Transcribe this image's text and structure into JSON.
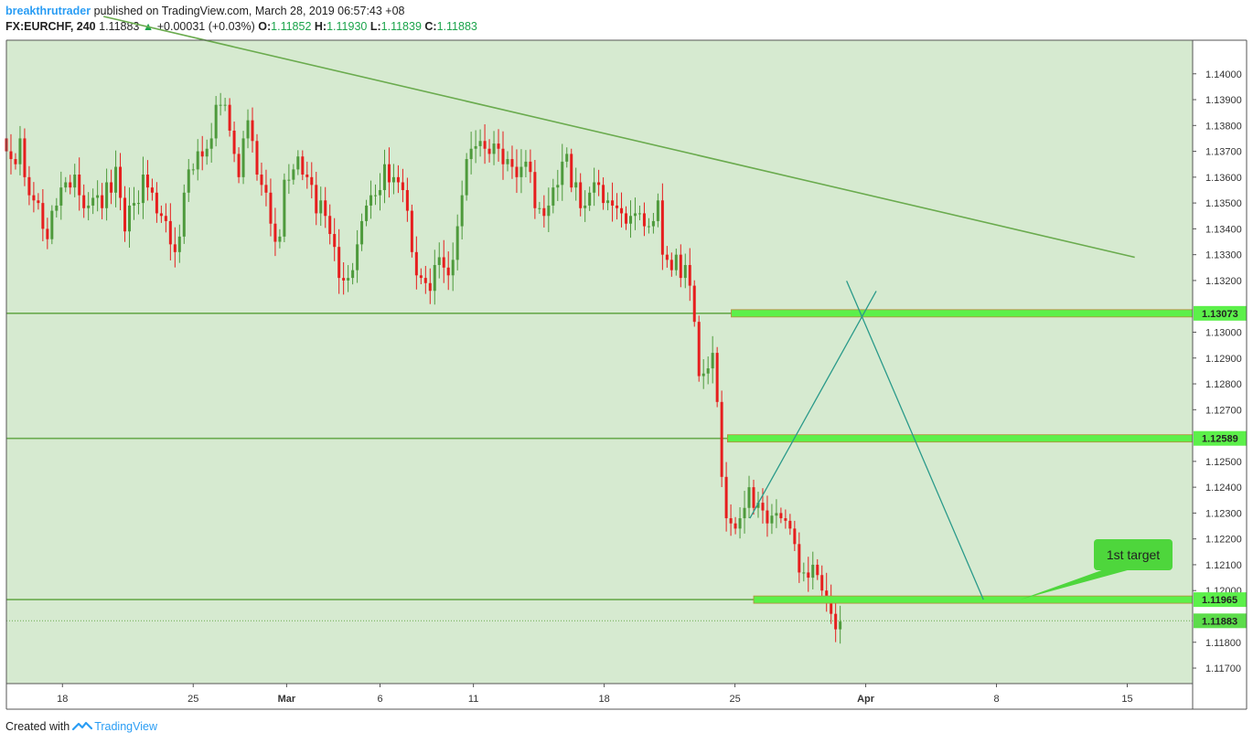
{
  "header": {
    "author": "breakthrutrader",
    "published_text": "published on TradingView.com, March 28, 2019 06:57:43 +08",
    "symbol": "FX:EURCHF, 240",
    "last": "1.11883",
    "change_arrow": "▲",
    "change": "+0.00031 (+0.03%)",
    "o_label": "O:",
    "o_value": "1.11852",
    "h_label": "H:",
    "h_value": "1.11930",
    "l_label": "L:",
    "l_value": "1.11839",
    "c_label": "C:",
    "c_value": "1.11883"
  },
  "footer": {
    "created_with": "Created with",
    "brand": "TradingView",
    "logo_icon": "tradingview-logo-icon"
  },
  "colors": {
    "plot_bg": "#d6ead0",
    "up": "#4e9a3c",
    "down": "#e61e1e",
    "line": "#6aab4e",
    "zone": "#5cf04a",
    "arc": "#2a9a8a",
    "label_bg": "#4ed63c",
    "last_bg": "#5cdc4a"
  },
  "chart_data": {
    "type": "candlestick",
    "symbol": "FX:EURCHF",
    "interval": "240",
    "ylim": [
      1.1164,
      1.1413
    ],
    "y_ticks": [
      "1.11700",
      "1.11800",
      "1.12000",
      "1.12100",
      "1.12200",
      "1.12300",
      "1.12400",
      "1.12500",
      "1.12700",
      "1.12800",
      "1.12900",
      "1.13000",
      "1.13200",
      "1.13300",
      "1.13400",
      "1.13500",
      "1.13600",
      "1.13700",
      "1.13800",
      "1.13900",
      "1.14000"
    ],
    "x_ticks": [
      {
        "label": "18",
        "day": 0,
        "bold": false
      },
      {
        "label": "25",
        "day": 7,
        "bold": false
      },
      {
        "label": "Mar",
        "day": 12,
        "bold": true
      },
      {
        "label": "6",
        "day": 17,
        "bold": false
      },
      {
        "label": "11",
        "day": 22,
        "bold": false
      },
      {
        "label": "18",
        "day": 29,
        "bold": false
      },
      {
        "label": "25",
        "day": 36,
        "bold": false
      },
      {
        "label": "Apr",
        "day": 43,
        "bold": true
      },
      {
        "label": "8",
        "day": 50,
        "bold": false
      },
      {
        "label": "15",
        "day": 57,
        "bold": false
      }
    ],
    "x_start_day": -3.0,
    "x_end_day": 60.5,
    "candles_start_day": -3.0,
    "candles_step_day": 0.2439,
    "candle_closes": [
      1.137,
      1.1367,
      1.1365,
      1.1375,
      1.136,
      1.1353,
      1.1351,
      1.135,
      1.134,
      1.1336,
      1.1347,
      1.1349,
      1.1356,
      1.1358,
      1.1356,
      1.1361,
      1.1353,
      1.1348,
      1.1349,
      1.1352,
      1.1353,
      1.1348,
      1.1358,
      1.1354,
      1.1364,
      1.1352,
      1.1339,
      1.1349,
      1.135,
      1.135,
      1.1361,
      1.1356,
      1.1354,
      1.1346,
      1.1345,
      1.1343,
      1.1334,
      1.1331,
      1.1337,
      1.1354,
      1.1363,
      1.1363,
      1.137,
      1.1368,
      1.1371,
      1.1375,
      1.1388,
      1.1388,
      1.1388,
      1.1378,
      1.1369,
      1.136,
      1.1375,
      1.1382,
      1.1374,
      1.1361,
      1.1357,
      1.1354,
      1.1342,
      1.1335,
      1.1337,
      1.1359,
      1.1359,
      1.1363,
      1.1368,
      1.1361,
      1.136,
      1.1357,
      1.1346,
      1.1351,
      1.1345,
      1.1338,
      1.1333,
      1.1321,
      1.132,
      1.1321,
      1.1324,
      1.1334,
      1.1343,
      1.1349,
      1.1353,
      1.1353,
      1.1355,
      1.1365,
      1.1358,
      1.136,
      1.1358,
      1.1355,
      1.1347,
      1.1331,
      1.1322,
      1.1321,
      1.1319,
      1.1316,
      1.1326,
      1.1329,
      1.1325,
      1.1322,
      1.1328,
      1.1341,
      1.1353,
      1.1367,
      1.1371,
      1.1372,
      1.1374,
      1.1371,
      1.1369,
      1.1373,
      1.1371,
      1.1365,
      1.1367,
      1.1364,
      1.136,
      1.1364,
      1.1366,
      1.1362,
      1.1348,
      1.1348,
      1.1345,
      1.1349,
      1.1356,
      1.1357,
      1.1366,
      1.1369,
      1.1356,
      1.1358,
      1.1348,
      1.1349,
      1.1354,
      1.1358,
      1.1357,
      1.135,
      1.1351,
      1.1349,
      1.1348,
      1.1346,
      1.1342,
      1.1345,
      1.1346,
      1.1346,
      1.1341,
      1.1341,
      1.1343,
      1.1351,
      1.133,
      1.1328,
      1.1324,
      1.133,
      1.1321,
      1.1326,
      1.1318,
      1.1304,
      1.1283,
      1.1284,
      1.1286,
      1.1292,
      1.1273,
      1.1244,
      1.1228,
      1.1226,
      1.1224,
      1.1228,
      1.1232,
      1.124,
      1.1232,
      1.1234,
      1.1231,
      1.1226,
      1.1229,
      1.123,
      1.1228,
      1.1227,
      1.1224,
      1.1218,
      1.1207,
      1.1207,
      1.1205,
      1.121,
      1.1206,
      1.12,
      1.1198,
      1.1191,
      1.1185,
      1.1188
    ],
    "trendline": {
      "from": {
        "day": 2.2,
        "price": 1.14222
      },
      "to": {
        "day": 57.4,
        "price": 1.1329
      }
    },
    "horizontal_lines": [
      1.13073,
      1.12589,
      1.11965
    ],
    "dotted_line": 1.11883,
    "zones": [
      {
        "label": "1.13073",
        "price": 1.13073,
        "start_day": 35.8
      },
      {
        "label": "1.12589",
        "price": 1.12589,
        "start_day": 35.6
      },
      {
        "label": "1.11965",
        "price": 1.11965,
        "start_day": 37.0
      }
    ],
    "last_price_label": "1.11883",
    "projection_path": [
      {
        "day": 36.8,
        "price": 1.1228
      },
      {
        "day": 42.8,
        "price": 1.1306
      },
      {
        "day": 49.3,
        "price": 1.11965
      }
    ],
    "callout": {
      "text": "1st target",
      "anchor_day": 49.3,
      "anchor_price": 1.11965
    }
  }
}
